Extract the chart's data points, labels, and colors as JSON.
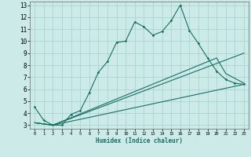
{
  "xlabel": "Humidex (Indice chaleur)",
  "bg_color": "#cceae8",
  "grid_color": "#aad4d0",
  "line_color": "#1a6e64",
  "xlim": [
    -0.5,
    23.5
  ],
  "ylim": [
    2.7,
    13.3
  ],
  "xtick_vals": [
    0,
    1,
    2,
    3,
    4,
    5,
    6,
    7,
    8,
    9,
    10,
    11,
    12,
    13,
    14,
    15,
    16,
    17,
    18,
    19,
    20,
    21,
    22,
    23
  ],
  "ytick_vals": [
    3,
    4,
    5,
    6,
    7,
    8,
    9,
    10,
    11,
    12,
    13
  ],
  "line1_x": [
    0,
    1,
    2,
    3,
    4,
    5,
    6,
    7,
    8,
    9,
    10,
    11,
    12,
    13,
    14,
    15,
    16,
    17,
    18,
    19,
    20,
    21,
    22,
    23
  ],
  "line1_y": [
    4.5,
    3.4,
    3.0,
    3.0,
    3.9,
    4.2,
    5.7,
    7.4,
    8.3,
    9.9,
    10.0,
    11.6,
    11.2,
    10.5,
    10.8,
    11.7,
    13.0,
    10.9,
    9.8,
    8.6,
    7.5,
    6.8,
    6.5,
    6.4
  ],
  "line2_x": [
    0,
    2,
    23
  ],
  "line2_y": [
    3.2,
    3.0,
    9.0
  ],
  "line3_x": [
    0,
    2,
    20,
    21,
    23
  ],
  "line3_y": [
    3.2,
    3.0,
    8.6,
    7.3,
    6.5
  ],
  "line4_x": [
    0,
    2,
    23
  ],
  "line4_y": [
    3.2,
    3.0,
    6.4
  ]
}
